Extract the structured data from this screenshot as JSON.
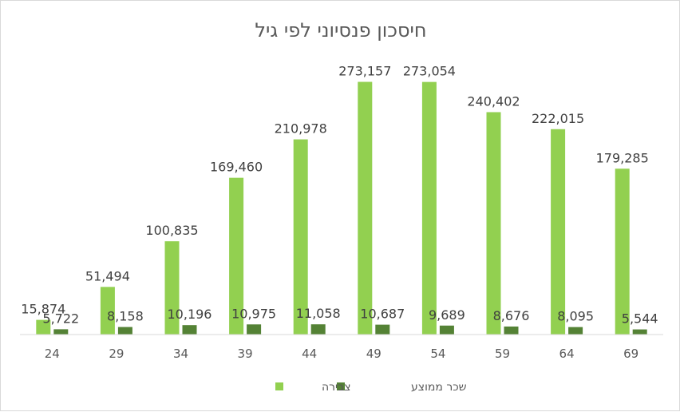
{
  "chart_data": {
    "type": "bar",
    "title": "חיסכון פנסיוני לפי גיל",
    "categories": [
      "24",
      "29",
      "34",
      "39",
      "44",
      "49",
      "54",
      "59",
      "64",
      "69"
    ],
    "series": [
      {
        "name": "צבירה",
        "color": "#92d050",
        "values": [
          15874,
          51494,
          100835,
          169460,
          210978,
          273157,
          273054,
          240402,
          222015,
          179285
        ],
        "labels": [
          "15,874",
          "51,494",
          "100,835",
          "169,460",
          "210,978",
          "273,157",
          "273,054",
          "240,402",
          "222,015",
          "179,285"
        ]
      },
      {
        "name": "שכר ממוצע",
        "color": "#548235",
        "values": [
          5722,
          8158,
          10196,
          10975,
          11058,
          10687,
          9689,
          8676,
          8095,
          5544
        ],
        "labels": [
          "5,722",
          "8,158",
          "10,196",
          "10,975",
          "11,058",
          "10,687",
          "9,689",
          "8,676",
          "8,095",
          "5,544"
        ]
      }
    ],
    "xlabel": "",
    "ylabel": "",
    "ylim": [
      0,
      290000
    ],
    "grid": false,
    "legend": "bottom"
  }
}
